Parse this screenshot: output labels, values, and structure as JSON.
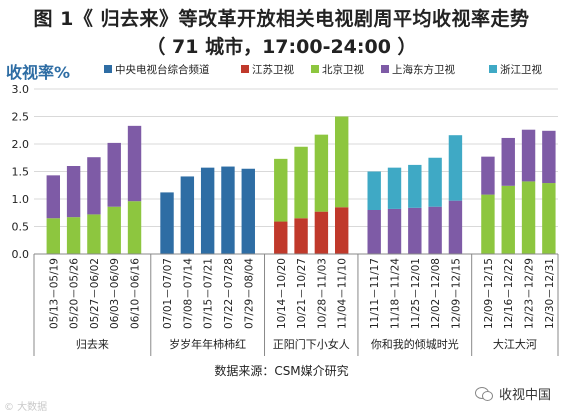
{
  "title_line1": "图 1《 归去来》等改革开放相关电视剧周平均收视率走势",
  "title_line2": "（ 71 城市，17:00-24:00 ）",
  "source": "数据来源：CSM媒介研究",
  "watermark_left": "© 大数据",
  "watermark_right": "收视中国",
  "chart_data": {
    "type": "stacked-bar",
    "ylabel": "收视率%",
    "ylim": [
      0,
      3.0
    ],
    "yticks": [
      0.0,
      0.5,
      1.0,
      1.5,
      2.0,
      2.5,
      3.0
    ],
    "grid": true,
    "legend_position": "top",
    "colors": {
      "cctv": "#2E6DA4",
      "jiangsu": "#C0392B",
      "beijing": "#8DC63F",
      "shanghai": "#7E5BA6",
      "zhejiang": "#3FA9C5"
    },
    "series": [
      {
        "key": "cctv",
        "name": "中央电视台综合频道"
      },
      {
        "key": "jiangsu",
        "name": "江苏卫视"
      },
      {
        "key": "beijing",
        "name": "北京卫视"
      },
      {
        "key": "shanghai",
        "name": "上海东方卫视"
      },
      {
        "key": "zhejiang",
        "name": "浙江卫视"
      }
    ],
    "groups": [
      {
        "name": "归去来",
        "bars": [
          {
            "x": "05/13－05/19",
            "segments": [
              {
                "series": "beijing",
                "value": 0.65
              },
              {
                "series": "shanghai",
                "value": 0.78
              }
            ]
          },
          {
            "x": "05/20－05/26",
            "segments": [
              {
                "series": "beijing",
                "value": 0.67
              },
              {
                "series": "shanghai",
                "value": 0.93
              }
            ]
          },
          {
            "x": "05/27－06/02",
            "segments": [
              {
                "series": "beijing",
                "value": 0.72
              },
              {
                "series": "shanghai",
                "value": 1.04
              }
            ]
          },
          {
            "x": "06/03－06/09",
            "segments": [
              {
                "series": "beijing",
                "value": 0.86
              },
              {
                "series": "shanghai",
                "value": 1.16
              }
            ]
          },
          {
            "x": "06/10－06/16",
            "segments": [
              {
                "series": "beijing",
                "value": 0.96
              },
              {
                "series": "shanghai",
                "value": 1.37
              }
            ]
          }
        ]
      },
      {
        "name": "岁岁年年柿柿红",
        "bars": [
          {
            "x": "07/01－07/07",
            "segments": [
              {
                "series": "cctv",
                "value": 1.12
              }
            ]
          },
          {
            "x": "07/08－07/14",
            "segments": [
              {
                "series": "cctv",
                "value": 1.41
              }
            ]
          },
          {
            "x": "07/15－07/21",
            "segments": [
              {
                "series": "cctv",
                "value": 1.57
              }
            ]
          },
          {
            "x": "07/22－07/28",
            "segments": [
              {
                "series": "cctv",
                "value": 1.59
              }
            ]
          },
          {
            "x": "07/29－08/04",
            "segments": [
              {
                "series": "cctv",
                "value": 1.55
              }
            ]
          }
        ]
      },
      {
        "name": "正阳门下小女人",
        "bars": [
          {
            "x": "10/14－10/20",
            "segments": [
              {
                "series": "jiangsu",
                "value": 0.59
              },
              {
                "series": "beijing",
                "value": 1.14
              }
            ]
          },
          {
            "x": "10/21－10/27",
            "segments": [
              {
                "series": "jiangsu",
                "value": 0.65
              },
              {
                "series": "beijing",
                "value": 1.3
              }
            ]
          },
          {
            "x": "10/28－11/03",
            "segments": [
              {
                "series": "jiangsu",
                "value": 0.77
              },
              {
                "series": "beijing",
                "value": 1.4
              }
            ]
          },
          {
            "x": "11/04－11/10",
            "segments": [
              {
                "series": "jiangsu",
                "value": 0.85
              },
              {
                "series": "beijing",
                "value": 1.65
              }
            ]
          }
        ]
      },
      {
        "name": "你和我的倾城时光",
        "bars": [
          {
            "x": "11/11－11/17",
            "segments": [
              {
                "series": "shanghai",
                "value": 0.8
              },
              {
                "series": "zhejiang",
                "value": 0.7
              }
            ]
          },
          {
            "x": "11/18－11/24",
            "segments": [
              {
                "series": "shanghai",
                "value": 0.82
              },
              {
                "series": "zhejiang",
                "value": 0.75
              }
            ]
          },
          {
            "x": "11/25－12/01",
            "segments": [
              {
                "series": "shanghai",
                "value": 0.84
              },
              {
                "series": "zhejiang",
                "value": 0.78
              }
            ]
          },
          {
            "x": "12/02－12/08",
            "segments": [
              {
                "series": "shanghai",
                "value": 0.86
              },
              {
                "series": "zhejiang",
                "value": 0.89
              }
            ]
          },
          {
            "x": "12/09－12/15",
            "segments": [
              {
                "series": "shanghai",
                "value": 0.97
              },
              {
                "series": "zhejiang",
                "value": 1.19
              }
            ]
          }
        ]
      },
      {
        "name": "大江大河",
        "bars": [
          {
            "x": "12/09－12/15",
            "segments": [
              {
                "series": "beijing",
                "value": 1.08
              },
              {
                "series": "shanghai",
                "value": 0.69
              }
            ]
          },
          {
            "x": "12/16－12/22",
            "segments": [
              {
                "series": "beijing",
                "value": 1.24
              },
              {
                "series": "shanghai",
                "value": 0.87
              }
            ]
          },
          {
            "x": "12/23－12/29",
            "segments": [
              {
                "series": "beijing",
                "value": 1.32
              },
              {
                "series": "shanghai",
                "value": 0.94
              }
            ]
          },
          {
            "x": "12/30－12/31",
            "segments": [
              {
                "series": "beijing",
                "value": 1.29
              },
              {
                "series": "shanghai",
                "value": 0.95
              }
            ]
          }
        ]
      }
    ]
  }
}
